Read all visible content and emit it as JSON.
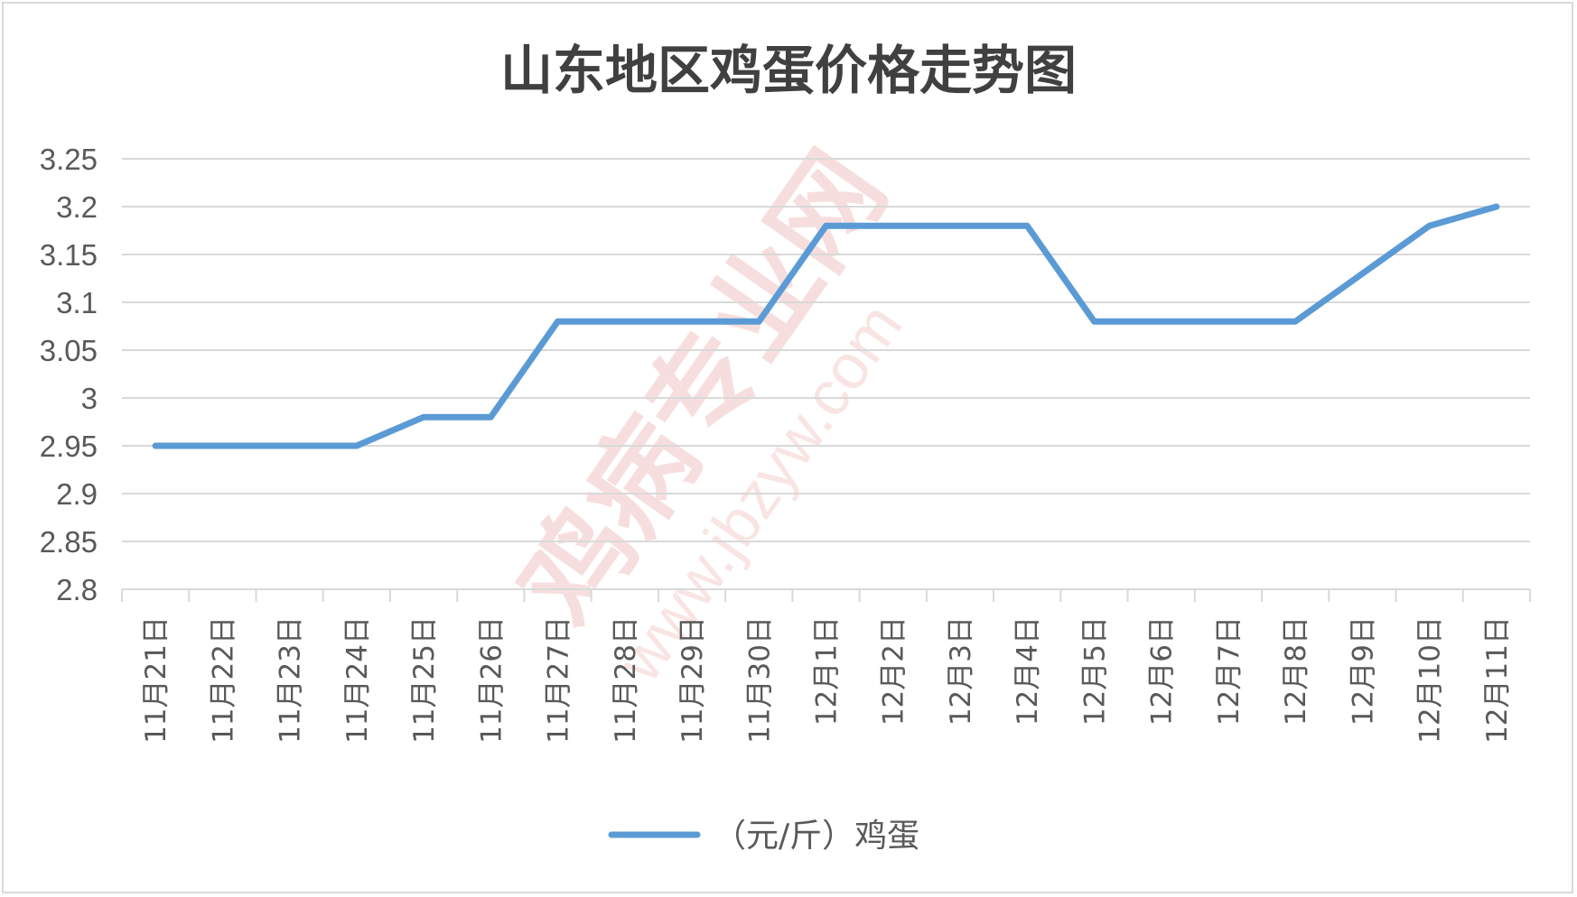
{
  "chart_data": {
    "type": "line",
    "title": "山东地区鸡蛋价格走势图",
    "categories": [
      "11月21日",
      "11月22日",
      "11月23日",
      "11月24日",
      "11月25日",
      "11月26日",
      "11月27日",
      "11月28日",
      "11月29日",
      "11月30日",
      "12月1日",
      "12月2日",
      "12月3日",
      "12月4日",
      "12月5日",
      "12月6日",
      "12月7日",
      "12月8日",
      "12月9日",
      "12月10日",
      "12月11日"
    ],
    "series": [
      {
        "name": "（元/斤）鸡蛋",
        "color": "#5b9bd5",
        "values": [
          2.95,
          2.95,
          2.95,
          2.95,
          2.98,
          2.98,
          3.08,
          3.08,
          3.08,
          3.08,
          3.18,
          3.18,
          3.18,
          3.18,
          3.08,
          3.08,
          3.08,
          3.08,
          3.13,
          3.18,
          3.2
        ]
      }
    ],
    "ylim": [
      2.8,
      3.25
    ],
    "yticks": [
      "2.8",
      "2.85",
      "2.9",
      "2.95",
      "3",
      "3.05",
      "3.1",
      "3.15",
      "3.2",
      "3.25"
    ],
    "grid": true,
    "legend_position": "bottom",
    "gridline_color": "#d9d9d9"
  },
  "watermark": {
    "brand": "鸡病专业网",
    "url": "www.jbzyw.com"
  }
}
